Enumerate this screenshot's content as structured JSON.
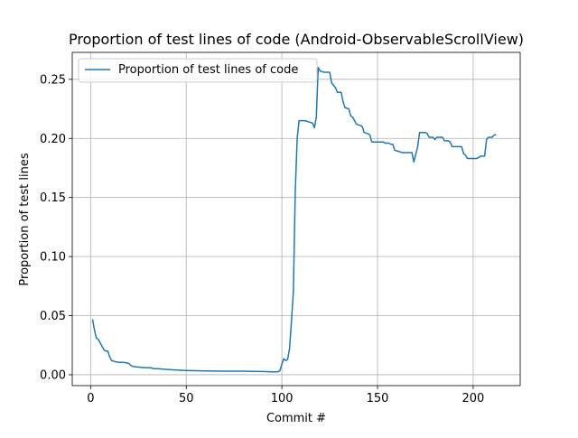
{
  "chart_data": {
    "type": "line",
    "title": "Proportion of test lines of code (Android-ObservableScrollView)",
    "xlabel": "Commit #",
    "ylabel": "Proportion of test lines",
    "xlim": [
      -9.6,
      224.6
    ],
    "ylim": [
      -0.0092,
      0.2728
    ],
    "xticks": [
      0,
      50,
      100,
      150,
      200
    ],
    "xtick_labels": [
      "0",
      "50",
      "100",
      "150",
      "200"
    ],
    "yticks": [
      0.0,
      0.05,
      0.1,
      0.15,
      0.2,
      0.25
    ],
    "ytick_labels": [
      "0.00",
      "0.05",
      "0.10",
      "0.15",
      "0.20",
      "0.25"
    ],
    "grid": true,
    "legend_position": "upper left",
    "series": [
      {
        "name": "Proportion of test lines of code",
        "color": "#1f77b4",
        "points": [
          [
            1,
            0.047
          ],
          [
            2,
            0.038
          ],
          [
            3,
            0.031
          ],
          [
            4,
            0.03
          ],
          [
            5,
            0.027
          ],
          [
            6,
            0.024
          ],
          [
            7,
            0.021
          ],
          [
            8,
            0.02
          ],
          [
            9,
            0.02
          ],
          [
            10,
            0.015
          ],
          [
            11,
            0.012
          ],
          [
            12,
            0.0115
          ],
          [
            13,
            0.011
          ],
          [
            15,
            0.0105
          ],
          [
            17,
            0.0105
          ],
          [
            19,
            0.01
          ],
          [
            20,
            0.0095
          ],
          [
            21,
            0.008
          ],
          [
            22,
            0.007
          ],
          [
            25,
            0.0065
          ],
          [
            28,
            0.006
          ],
          [
            31,
            0.006
          ],
          [
            33,
            0.0052
          ],
          [
            36,
            0.005
          ],
          [
            40,
            0.0045
          ],
          [
            45,
            0.004
          ],
          [
            50,
            0.0036
          ],
          [
            55,
            0.0034
          ],
          [
            60,
            0.0032
          ],
          [
            65,
            0.0031
          ],
          [
            70,
            0.003
          ],
          [
            75,
            0.003
          ],
          [
            80,
            0.003
          ],
          [
            85,
            0.0028
          ],
          [
            90,
            0.0027
          ],
          [
            95,
            0.0025
          ],
          [
            98,
            0.0025
          ],
          [
            99,
            0.0035
          ],
          [
            100,
            0.009
          ],
          [
            101,
            0.0135
          ],
          [
            102,
            0.012
          ],
          [
            103,
            0.013
          ],
          [
            104,
            0.022
          ],
          [
            105,
            0.045
          ],
          [
            106,
            0.07
          ],
          [
            107,
            0.155
          ],
          [
            108,
            0.2
          ],
          [
            109,
            0.215
          ],
          [
            110,
            0.215
          ],
          [
            112,
            0.215
          ],
          [
            114,
            0.214
          ],
          [
            116,
            0.213
          ],
          [
            117,
            0.209
          ],
          [
            118,
            0.218
          ],
          [
            119,
            0.26
          ],
          [
            120,
            0.257
          ],
          [
            122,
            0.256
          ],
          [
            124,
            0.256
          ],
          [
            125,
            0.256
          ],
          [
            126,
            0.247
          ],
          [
            127,
            0.245
          ],
          [
            128,
            0.243
          ],
          [
            129,
            0.239
          ],
          [
            131,
            0.239
          ],
          [
            132,
            0.231
          ],
          [
            133,
            0.226
          ],
          [
            135,
            0.225
          ],
          [
            136,
            0.219
          ],
          [
            137,
            0.218
          ],
          [
            138,
            0.215
          ],
          [
            139,
            0.212
          ],
          [
            141,
            0.211
          ],
          [
            142,
            0.21
          ],
          [
            143,
            0.205
          ],
          [
            145,
            0.204
          ],
          [
            146,
            0.203
          ],
          [
            147,
            0.197
          ],
          [
            149,
            0.197
          ],
          [
            151,
            0.197
          ],
          [
            153,
            0.197
          ],
          [
            154,
            0.196
          ],
          [
            156,
            0.196
          ],
          [
            157,
            0.195
          ],
          [
            158,
            0.195
          ],
          [
            159,
            0.19
          ],
          [
            161,
            0.189
          ],
          [
            163,
            0.188
          ],
          [
            166,
            0.188
          ],
          [
            168,
            0.188
          ],
          [
            169,
            0.18
          ],
          [
            171,
            0.193
          ],
          [
            172,
            0.205
          ],
          [
            173,
            0.205
          ],
          [
            175,
            0.205
          ],
          [
            176,
            0.204
          ],
          [
            177,
            0.201
          ],
          [
            179,
            0.201
          ],
          [
            180,
            0.199
          ],
          [
            181,
            0.201
          ],
          [
            183,
            0.201
          ],
          [
            184,
            0.201
          ],
          [
            185,
            0.198
          ],
          [
            187,
            0.198
          ],
          [
            188,
            0.197
          ],
          [
            189,
            0.193
          ],
          [
            192,
            0.193
          ],
          [
            194,
            0.193
          ],
          [
            195,
            0.187
          ],
          [
            196,
            0.186
          ],
          [
            197,
            0.183
          ],
          [
            199,
            0.183
          ],
          [
            201,
            0.183
          ],
          [
            202,
            0.183
          ],
          [
            203,
            0.184
          ],
          [
            204,
            0.185
          ],
          [
            206,
            0.185
          ],
          [
            207,
            0.199
          ],
          [
            208,
            0.201
          ],
          [
            210,
            0.201
          ],
          [
            211,
            0.203
          ],
          [
            212,
            0.203
          ]
        ]
      }
    ]
  }
}
